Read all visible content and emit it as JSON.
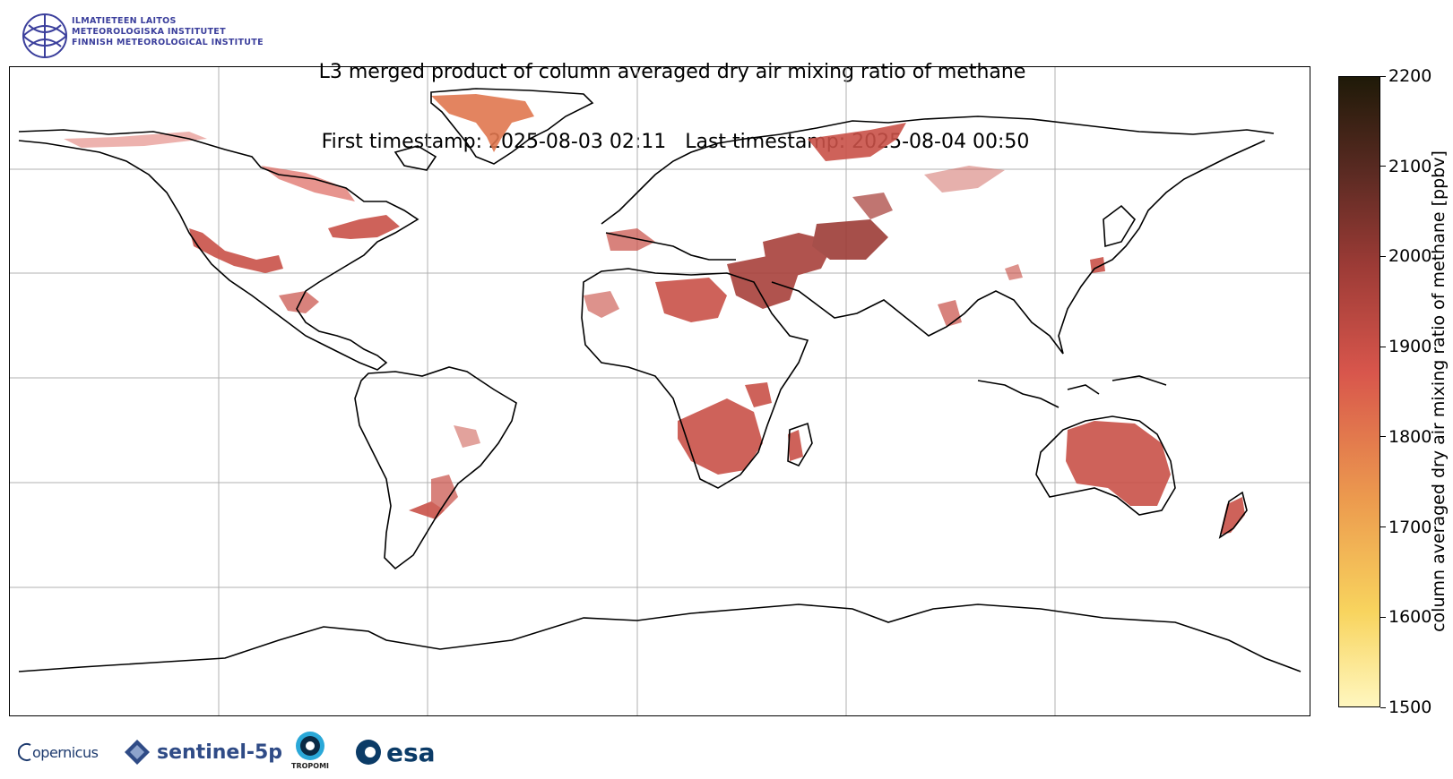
{
  "title": {
    "line1": "L3 merged product of column averaged dry air mixing ratio of methane",
    "line2": " First timestamp: 2025-08-03 02:11   Last timestamp: 2025-08-04 00:50"
  },
  "institute": {
    "line1": "ILMATIETEEN LAITOS",
    "line2": "METEOROLOGISKA INSTITUTET",
    "line3": "FINNISH METEOROLOGICAL INSTITUTE"
  },
  "colorbar": {
    "label": "column averaged dry air mixing ratio of methane [ppbv]",
    "min": 1500,
    "max": 2200,
    "ticks": [
      "1500",
      "1600",
      "1700",
      "1800",
      "1900",
      "2000",
      "2100",
      "2200"
    ]
  },
  "footer": {
    "copernicus": "opernicus",
    "sentinel": "sentinel-5p",
    "tropomi": "TROPOMI",
    "esa": "esa"
  },
  "colors": {
    "methane_main": "#c95148",
    "methane_high": "#a8403a",
    "methane_low": "#e0774f",
    "fmi_blue": "#3b3f9c"
  },
  "icons": [
    "fmi-logo-icon",
    "copernicus-icon",
    "sentinel-satellite-icon",
    "tropomi-icon",
    "esa-icon"
  ]
}
